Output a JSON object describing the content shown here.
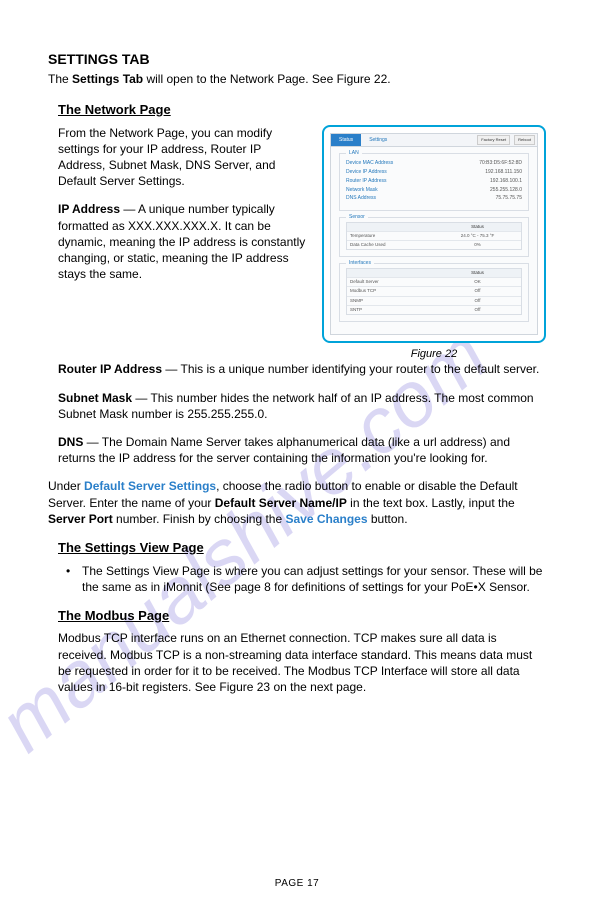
{
  "page": {
    "title": "SETTINGS TAB",
    "intro_pre": "The ",
    "intro_bold": "Settings Tab",
    "intro_post": " will open to the Network Page. See Figure 22.",
    "footer": "PAGE  17"
  },
  "network": {
    "heading": "The Network Page",
    "p1": "From the Network Page, you can modify settings for your IP address, Router IP Address, Subnet Mask, DNS Server, and Default Server Settings.",
    "ip_label": "IP Address",
    "ip_text": " — A unique number typically formatted as XXX.XXX.XXX.X. It can be dynamic, meaning the IP address is constantly changing, or static, meaning the IP address stays the same.",
    "router_label": "Router IP Address",
    "router_text": " — This is a unique number identifying your router to the default server.",
    "subnet_label": "Subnet Mask",
    "subnet_text": " — This number hides the network half of an IP address. The most common Subnet Mask number is 255.255.255.0.",
    "dns_label": "DNS",
    "dns_text": " — The Domain Name Server takes alphanumerical data (like a url address) and returns the IP address for the server containing the information you're looking for."
  },
  "figure": {
    "caption": "Figure 22",
    "tabs": {
      "status": "Status",
      "settings": "Settings",
      "btn1": "Factory Reset",
      "btn2": "Reboot"
    },
    "lan": {
      "label": "LAN",
      "rows": [
        {
          "k": "Device MAC Address",
          "v": "70:B3:D5:6F:52:8D"
        },
        {
          "k": "Device IP Address",
          "v": "192.168.111.150"
        },
        {
          "k": "Router IP Address",
          "v": "192.168.100.1"
        },
        {
          "k": "Network Mask",
          "v": "255.255.128.0"
        },
        {
          "k": "DNS Address",
          "v": "75.75.75.75"
        }
      ]
    },
    "sensor": {
      "label": "Sensor",
      "hdr": "Status",
      "rows": [
        {
          "k": "Temperature",
          "v": "24.0 °C - 75.3 °F"
        },
        {
          "k": "Data Cache Used",
          "v": "0%"
        }
      ]
    },
    "interfaces": {
      "label": "Interfaces",
      "hdr": "Status",
      "rows": [
        {
          "k": "Default Server",
          "v": "OK"
        },
        {
          "k": "Modbus TCP",
          "v": "Off"
        },
        {
          "k": "SNMP",
          "v": "Off"
        },
        {
          "k": "SNTP",
          "v": "Off"
        }
      ]
    }
  },
  "default_server": {
    "pre": "Under ",
    "link": "Default Server Settings",
    "mid1": ", choose the radio button to enable or disable the Default Server. Enter the name of your ",
    "bold1": "Default Server Name/IP",
    "mid2": " in the text box. Lastly, input the ",
    "bold2": "Server Port",
    "mid3": " number. Finish by choosing the ",
    "link2": "Save Changes",
    "post": " button."
  },
  "settings_view": {
    "heading": "The Settings View Page",
    "bullet": "The Settings View Page is where you can adjust settings for your sensor. These will be the same as in iMonnit (See page 8 for definitions of settings for your PoE•X Sensor."
  },
  "modbus": {
    "heading": "The Modbus Page",
    "p": "Modbus TCP interface runs on an Ethernet connection. TCP makes sure all data is received. Modbus TCP is a non-streaming data interface standard. This means data must be requested in order for it to be received. The Modbus TCP Interface will store all data values in 16-bit registers. See Figure 23 on the next page."
  },
  "watermark": {
    "text": "manualshive.com",
    "color": "#7a6fd8",
    "opacity": 0.35,
    "fontsize": 78,
    "rotate": -38
  }
}
